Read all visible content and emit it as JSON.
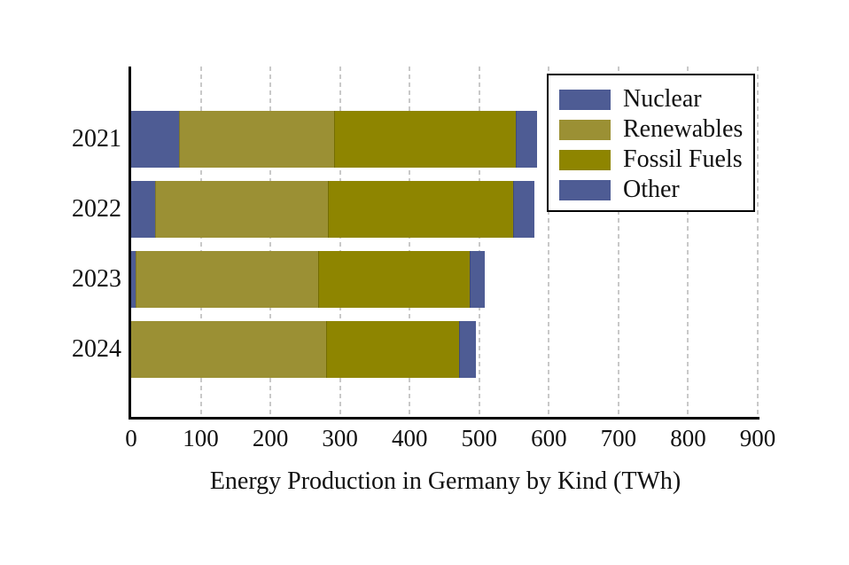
{
  "chart_data": {
    "type": "bar",
    "orientation": "horizontal-stacked",
    "title": "",
    "xlabel": "Energy Production in Germany by Kind (TWh)",
    "ylabel": "",
    "categories": [
      "2021",
      "2022",
      "2023",
      "2024"
    ],
    "series": [
      {
        "name": "Nuclear",
        "color": "#4E5C94",
        "values": [
          69,
          34,
          7,
          0
        ]
      },
      {
        "name": "Renewables",
        "color": "#9B9034",
        "values": [
          223,
          249,
          262,
          280
        ]
      },
      {
        "name": "Fossil Fuels",
        "color": "#8E8500",
        "values": [
          260,
          266,
          217,
          191
        ]
      },
      {
        "name": "Other",
        "color": "#4E5C94",
        "values": [
          31,
          30,
          22,
          24
        ]
      }
    ],
    "totals": [
      583,
      579,
      508,
      495
    ],
    "x_ticks": [
      0,
      100,
      200,
      300,
      400,
      500,
      600,
      700,
      800,
      900
    ],
    "xlim": [
      0,
      900
    ],
    "grid": "vertical-dashed",
    "grid_color": "#c9c9c9",
    "axis_color": "#000000",
    "text_color": "#111111",
    "legend_position": "top-right",
    "legend_border_color": "#000000"
  }
}
